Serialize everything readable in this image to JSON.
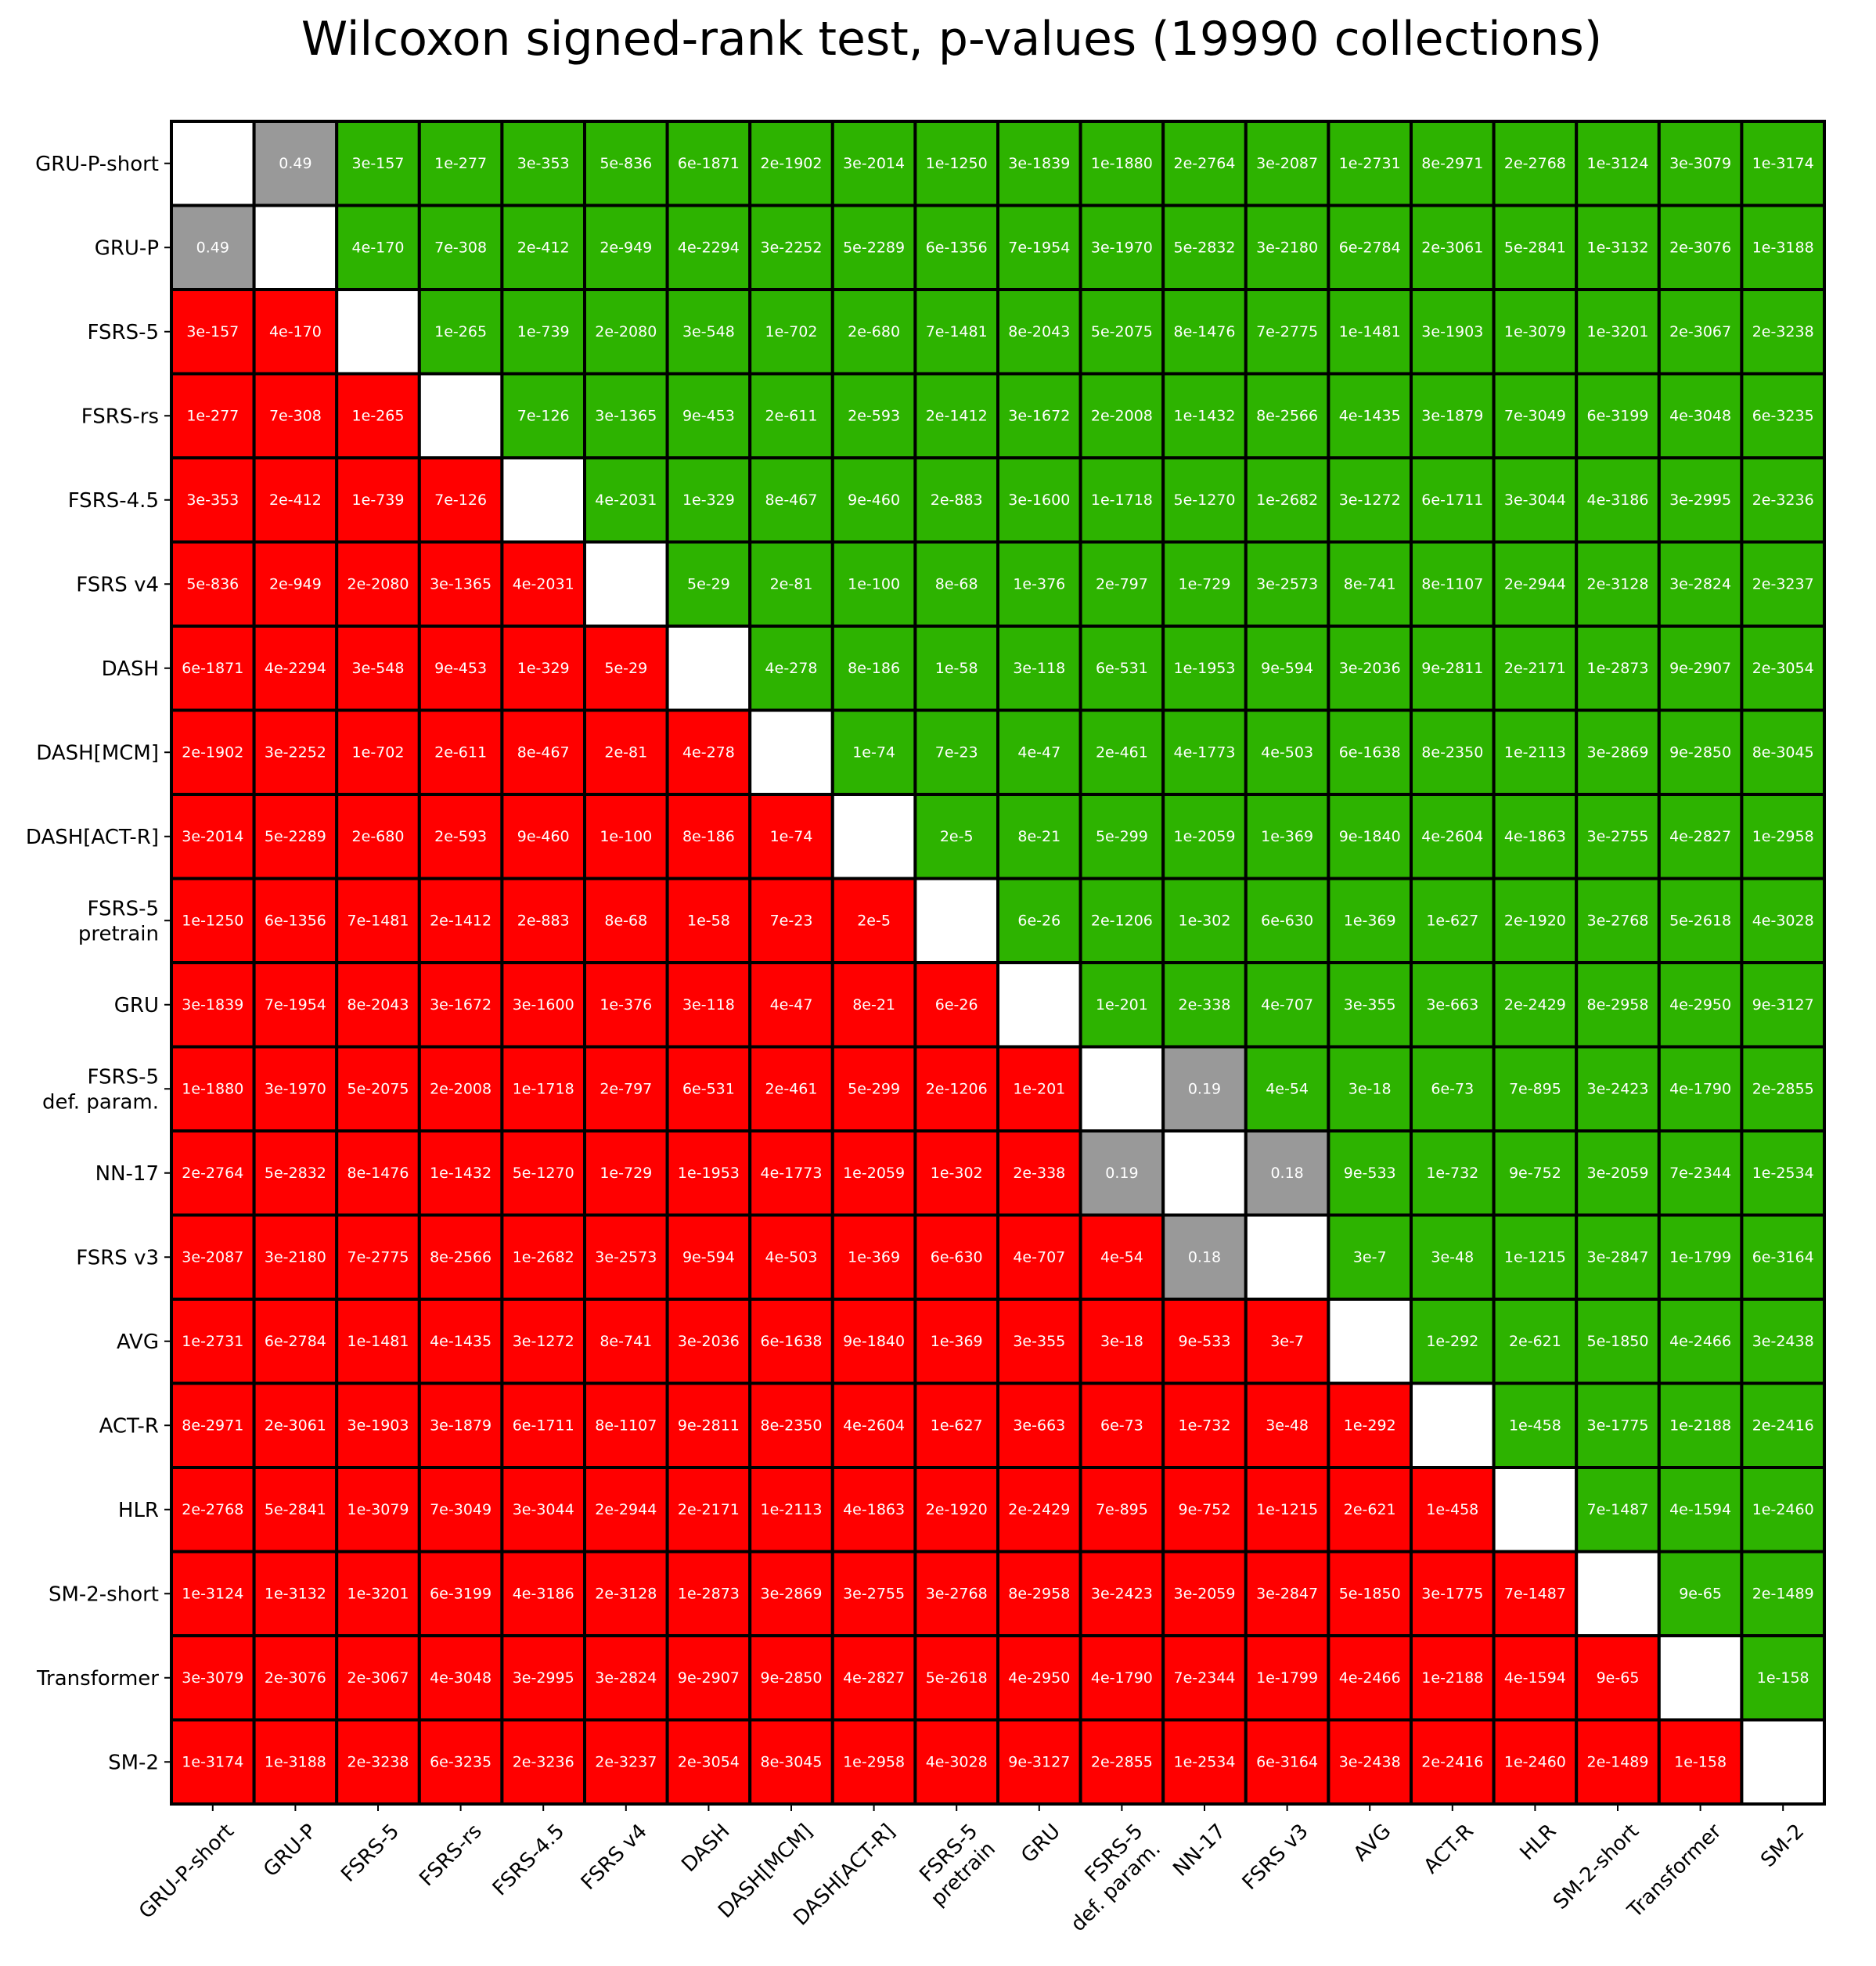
{
  "chart_data": {
    "type": "heatmap",
    "title": "Wilcoxon signed-rank test, p-values (19990 collections)",
    "xlabel": "",
    "ylabel": "",
    "row_labels": [
      "GRU-P-short",
      "GRU-P",
      "FSRS-5",
      "FSRS-rs",
      "FSRS-4.5",
      "FSRS v4",
      "DASH",
      "DASH[MCM]",
      "DASH[ACT-R]",
      "FSRS-5\npretrain",
      "GRU",
      "FSRS-5\ndef. param.",
      "NN-17",
      "FSRS v3",
      "AVG",
      "ACT-R",
      "HLR",
      "SM-2-short",
      "Transformer",
      "SM-2"
    ],
    "col_labels": [
      "GRU-P-short",
      "GRU-P",
      "FSRS-5",
      "FSRS-rs",
      "FSRS-4.5",
      "FSRS v4",
      "DASH",
      "DASH[MCM]",
      "DASH[ACT-R]",
      "FSRS-5\npretrain",
      "GRU",
      "FSRS-5\ndef. param.",
      "NN-17",
      "FSRS v3",
      "AVG",
      "ACT-R",
      "HLR",
      "SM-2-short",
      "Transformer",
      "SM-2"
    ],
    "colors": {
      "better": "#2db300",
      "worse": "#ff0000",
      "not_significant": "#999999",
      "diagonal": "#ffffff",
      "grid": "#000000"
    },
    "legend": "none",
    "values": [
      [
        "",
        "0.49",
        "3e-157",
        "1e-277",
        "3e-353",
        "5e-836",
        "6e-1871",
        "2e-1902",
        "3e-2014",
        "1e-1250",
        "3e-1839",
        "1e-1880",
        "2e-2764",
        "3e-2087",
        "1e-2731",
        "8e-2971",
        "2e-2768",
        "1e-3124",
        "3e-3079",
        "1e-3174"
      ],
      [
        "0.49",
        "",
        "4e-170",
        "7e-308",
        "2e-412",
        "2e-949",
        "4e-2294",
        "3e-2252",
        "5e-2289",
        "6e-1356",
        "7e-1954",
        "3e-1970",
        "5e-2832",
        "3e-2180",
        "6e-2784",
        "2e-3061",
        "5e-2841",
        "1e-3132",
        "2e-3076",
        "1e-3188"
      ],
      [
        "3e-157",
        "4e-170",
        "",
        "1e-265",
        "1e-739",
        "2e-2080",
        "3e-548",
        "1e-702",
        "2e-680",
        "7e-1481",
        "8e-2043",
        "5e-2075",
        "8e-1476",
        "7e-2775",
        "1e-1481",
        "3e-1903",
        "1e-3079",
        "1e-3201",
        "2e-3067",
        "2e-3238"
      ],
      [
        "1e-277",
        "7e-308",
        "1e-265",
        "",
        "7e-126",
        "3e-1365",
        "9e-453",
        "2e-611",
        "2e-593",
        "2e-1412",
        "3e-1672",
        "2e-2008",
        "1e-1432",
        "8e-2566",
        "4e-1435",
        "3e-1879",
        "7e-3049",
        "6e-3199",
        "4e-3048",
        "6e-3235"
      ],
      [
        "3e-353",
        "2e-412",
        "1e-739",
        "7e-126",
        "",
        "4e-2031",
        "1e-329",
        "8e-467",
        "9e-460",
        "2e-883",
        "3e-1600",
        "1e-1718",
        "5e-1270",
        "1e-2682",
        "3e-1272",
        "6e-1711",
        "3e-3044",
        "4e-3186",
        "3e-2995",
        "2e-3236"
      ],
      [
        "5e-836",
        "2e-949",
        "2e-2080",
        "3e-1365",
        "4e-2031",
        "",
        "5e-29",
        "2e-81",
        "1e-100",
        "8e-68",
        "1e-376",
        "2e-797",
        "1e-729",
        "3e-2573",
        "8e-741",
        "8e-1107",
        "2e-2944",
        "2e-3128",
        "3e-2824",
        "2e-3237"
      ],
      [
        "6e-1871",
        "4e-2294",
        "3e-548",
        "9e-453",
        "1e-329",
        "5e-29",
        "",
        "4e-278",
        "8e-186",
        "1e-58",
        "3e-118",
        "6e-531",
        "1e-1953",
        "9e-594",
        "3e-2036",
        "9e-2811",
        "2e-2171",
        "1e-2873",
        "9e-2907",
        "2e-3054"
      ],
      [
        "2e-1902",
        "3e-2252",
        "1e-702",
        "2e-611",
        "8e-467",
        "2e-81",
        "4e-278",
        "",
        "1e-74",
        "7e-23",
        "4e-47",
        "2e-461",
        "4e-1773",
        "4e-503",
        "6e-1638",
        "8e-2350",
        "1e-2113",
        "3e-2869",
        "9e-2850",
        "8e-3045"
      ],
      [
        "3e-2014",
        "5e-2289",
        "2e-680",
        "2e-593",
        "9e-460",
        "1e-100",
        "8e-186",
        "1e-74",
        "",
        "2e-5",
        "8e-21",
        "5e-299",
        "1e-2059",
        "1e-369",
        "9e-1840",
        "4e-2604",
        "4e-1863",
        "3e-2755",
        "4e-2827",
        "1e-2958"
      ],
      [
        "1e-1250",
        "6e-1356",
        "7e-1481",
        "2e-1412",
        "2e-883",
        "8e-68",
        "1e-58",
        "7e-23",
        "2e-5",
        "",
        "6e-26",
        "2e-1206",
        "1e-302",
        "6e-630",
        "1e-369",
        "1e-627",
        "2e-1920",
        "3e-2768",
        "5e-2618",
        "4e-3028"
      ],
      [
        "3e-1839",
        "7e-1954",
        "8e-2043",
        "3e-1672",
        "3e-1600",
        "1e-376",
        "3e-118",
        "4e-47",
        "8e-21",
        "6e-26",
        "",
        "1e-201",
        "2e-338",
        "4e-707",
        "3e-355",
        "3e-663",
        "2e-2429",
        "8e-2958",
        "4e-2950",
        "9e-3127"
      ],
      [
        "1e-1880",
        "3e-1970",
        "5e-2075",
        "2e-2008",
        "1e-1718",
        "2e-797",
        "6e-531",
        "2e-461",
        "5e-299",
        "2e-1206",
        "1e-201",
        "",
        "0.19",
        "4e-54",
        "3e-18",
        "6e-73",
        "7e-895",
        "3e-2423",
        "4e-1790",
        "2e-2855"
      ],
      [
        "2e-2764",
        "5e-2832",
        "8e-1476",
        "1e-1432",
        "5e-1270",
        "1e-729",
        "1e-1953",
        "4e-1773",
        "1e-2059",
        "1e-302",
        "2e-338",
        "0.19",
        "",
        "0.18",
        "9e-533",
        "1e-732",
        "9e-752",
        "3e-2059",
        "7e-2344",
        "1e-2534"
      ],
      [
        "3e-2087",
        "3e-2180",
        "7e-2775",
        "8e-2566",
        "1e-2682",
        "3e-2573",
        "9e-594",
        "4e-503",
        "1e-369",
        "6e-630",
        "4e-707",
        "4e-54",
        "0.18",
        "",
        "3e-7",
        "3e-48",
        "1e-1215",
        "3e-2847",
        "1e-1799",
        "6e-3164"
      ],
      [
        "1e-2731",
        "6e-2784",
        "1e-1481",
        "4e-1435",
        "3e-1272",
        "8e-741",
        "3e-2036",
        "6e-1638",
        "9e-1840",
        "1e-369",
        "3e-355",
        "3e-18",
        "9e-533",
        "3e-7",
        "",
        "1e-292",
        "2e-621",
        "5e-1850",
        "4e-2466",
        "3e-2438"
      ],
      [
        "8e-2971",
        "2e-3061",
        "3e-1903",
        "3e-1879",
        "6e-1711",
        "8e-1107",
        "9e-2811",
        "8e-2350",
        "4e-2604",
        "1e-627",
        "3e-663",
        "6e-73",
        "1e-732",
        "3e-48",
        "1e-292",
        "",
        "1e-458",
        "3e-1775",
        "1e-2188",
        "2e-2416"
      ],
      [
        "2e-2768",
        "5e-2841",
        "1e-3079",
        "7e-3049",
        "3e-3044",
        "2e-2944",
        "2e-2171",
        "1e-2113",
        "4e-1863",
        "2e-1920",
        "2e-2429",
        "7e-895",
        "9e-752",
        "1e-1215",
        "2e-621",
        "1e-458",
        "",
        "7e-1487",
        "4e-1594",
        "1e-2460"
      ],
      [
        "1e-3124",
        "1e-3132",
        "1e-3201",
        "6e-3199",
        "4e-3186",
        "2e-3128",
        "1e-2873",
        "3e-2869",
        "3e-2755",
        "3e-2768",
        "8e-2958",
        "3e-2423",
        "3e-2059",
        "3e-2847",
        "5e-1850",
        "3e-1775",
        "7e-1487",
        "",
        "9e-65",
        "2e-1489"
      ],
      [
        "3e-3079",
        "2e-3076",
        "2e-3067",
        "4e-3048",
        "3e-2995",
        "3e-2824",
        "9e-2907",
        "9e-2850",
        "4e-2827",
        "5e-2618",
        "4e-2950",
        "4e-1790",
        "7e-2344",
        "1e-1799",
        "4e-2466",
        "1e-2188",
        "4e-1594",
        "9e-65",
        "",
        "1e-158"
      ],
      [
        "1e-3174",
        "1e-3188",
        "2e-3238",
        "6e-3235",
        "2e-3236",
        "2e-3237",
        "2e-3054",
        "8e-3045",
        "1e-2958",
        "4e-3028",
        "9e-3127",
        "2e-2855",
        "1e-2534",
        "6e-3164",
        "3e-2438",
        "2e-2416",
        "1e-2460",
        "2e-1489",
        "1e-158",
        ""
      ]
    ]
  }
}
